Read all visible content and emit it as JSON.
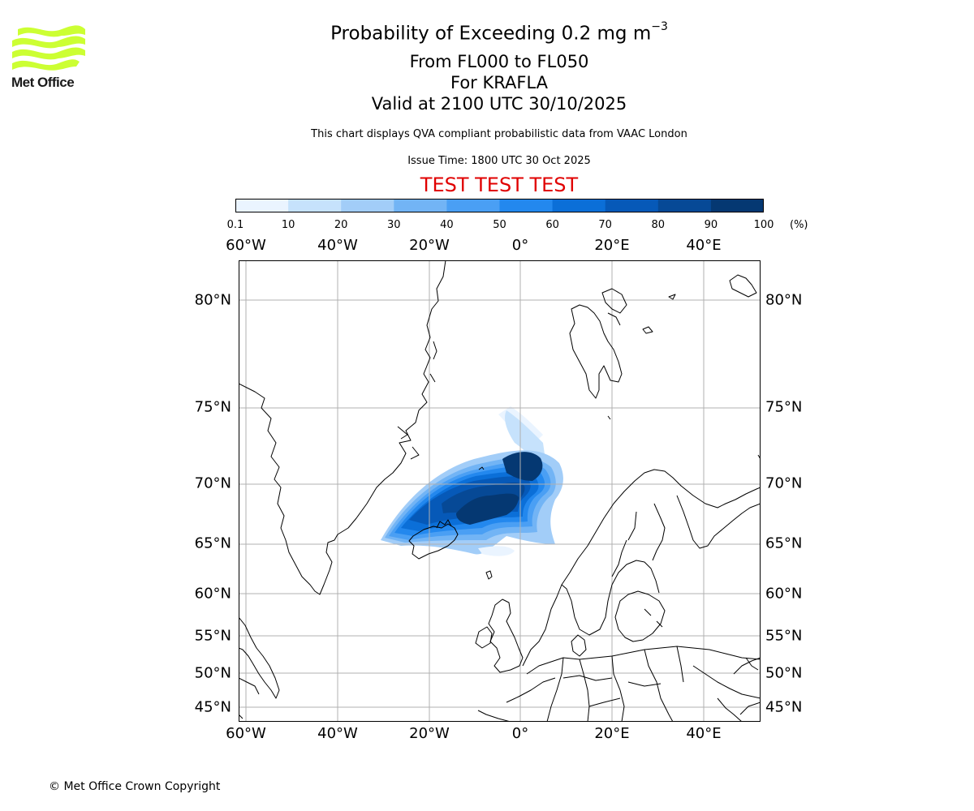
{
  "logo": {
    "text": "Met Office",
    "color": "#ccff33"
  },
  "title": {
    "main": "Probability of Exceeding 0.2 mg m",
    "exponent": "−3"
  },
  "subtitle": [
    "From FL000 to FL050",
    "For KRAFLA",
    "Valid at 2100 UTC 30/10/2025"
  ],
  "disclaimer": "This chart displays QVA compliant probabilistic data from VAAC London",
  "issue_time": "Issue Time: 1800 UTC 30 Oct 2025",
  "test_banner": "TEST TEST TEST",
  "test_color": "#e00000",
  "colorbar": {
    "ticks": [
      "0.1",
      "10",
      "20",
      "30",
      "40",
      "50",
      "60",
      "70",
      "80",
      "90",
      "100"
    ],
    "unit": "(%)",
    "colors": [
      "#eaf4ff",
      "#c6e2fc",
      "#a2cdf8",
      "#72b4f5",
      "#4a9ff4",
      "#2388ee",
      "#0b6fd8",
      "#0659b8",
      "#064996",
      "#053872"
    ]
  },
  "map": {
    "lon_labels": [
      "60°W",
      "40°W",
      "20°W",
      "0°",
      "20°E",
      "40°E"
    ],
    "lat_labels_left": [
      "80°N",
      "75°N",
      "70°N",
      "65°N",
      "60°N",
      "55°N",
      "50°N",
      "45°N"
    ],
    "lat_labels_right": [
      "80°N",
      "75°N",
      "70°N",
      "65°N",
      "60°N",
      "55°N",
      "50°N",
      "45°N"
    ]
  },
  "copyright": "© Met Office Crown Copyright"
}
